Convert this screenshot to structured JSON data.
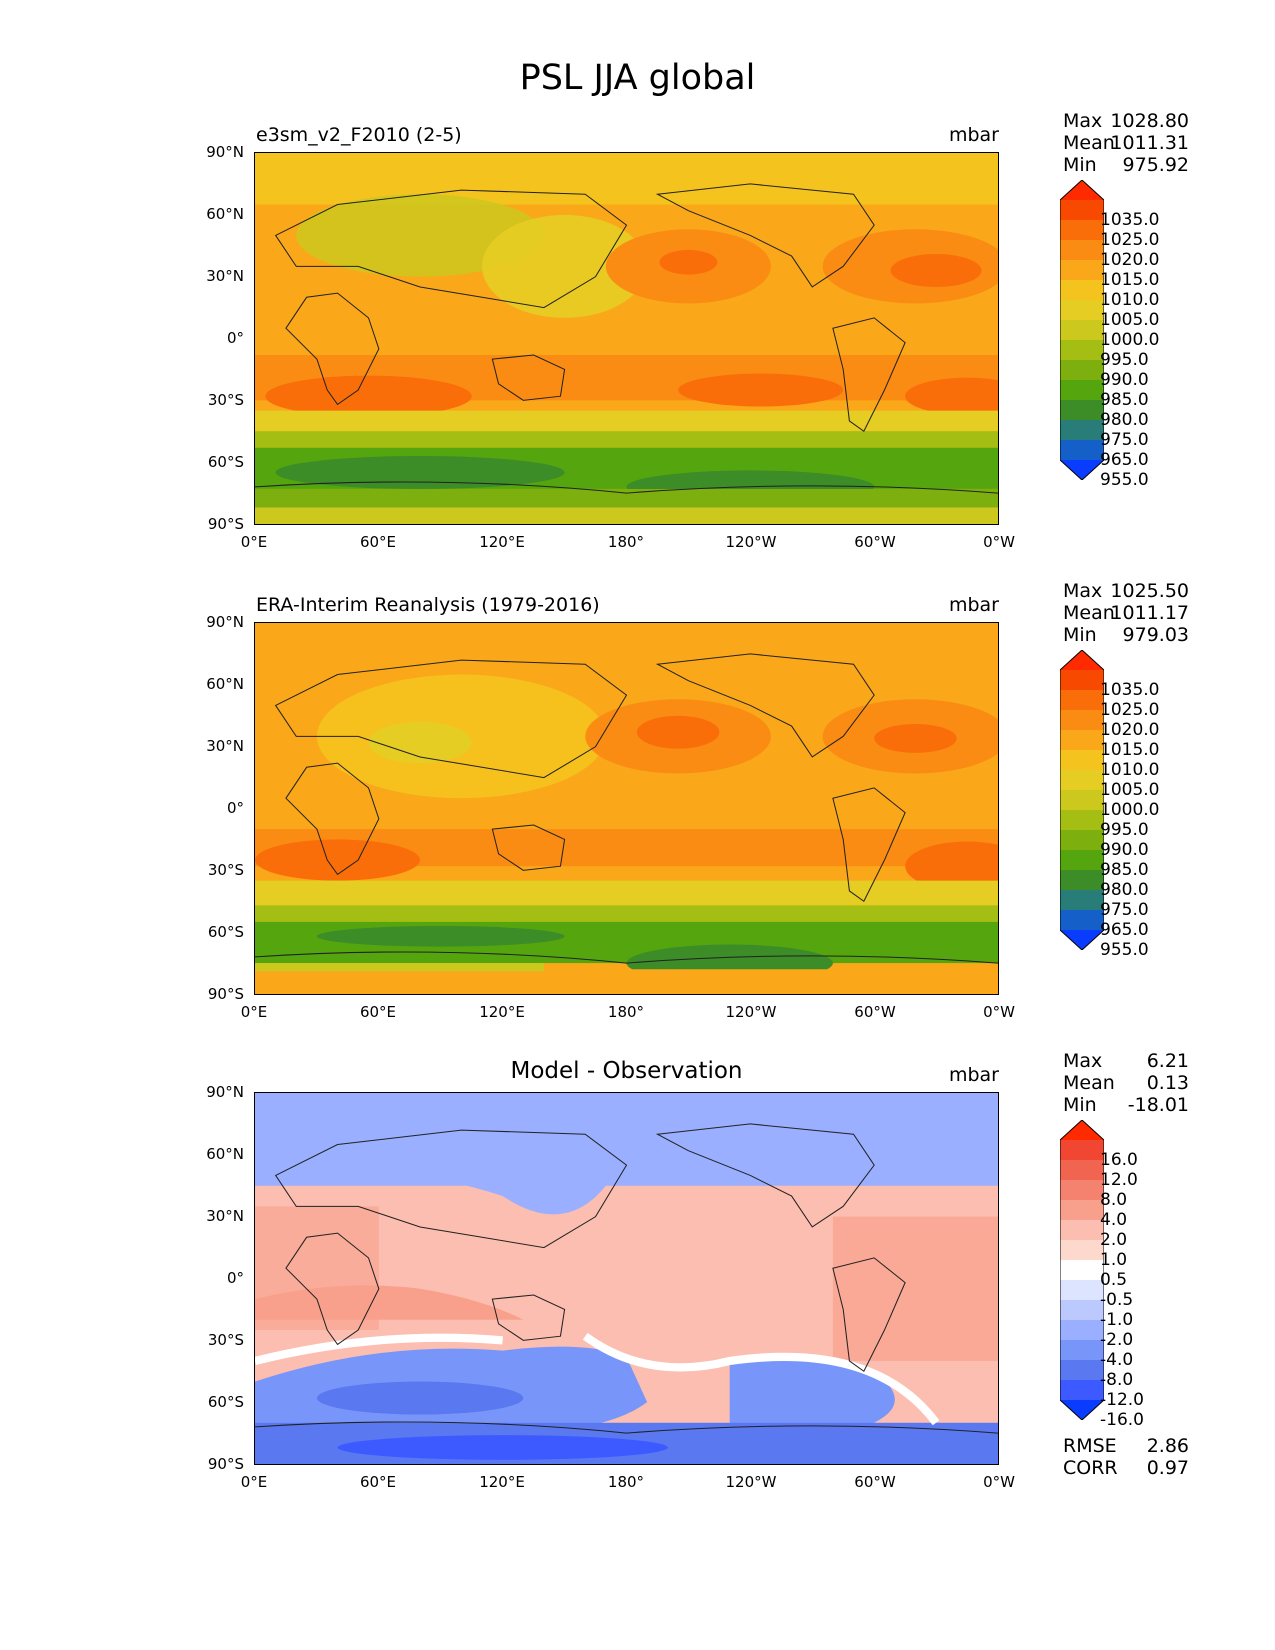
{
  "figure": {
    "title": "PSL JJA global"
  },
  "axes": {
    "lat_ticks": [
      "90°N",
      "60°N",
      "30°N",
      "0°",
      "30°S",
      "60°S",
      "90°S"
    ],
    "lon_ticks": [
      "0°E",
      "60°E",
      "120°E",
      "180°",
      "120°W",
      "60°W",
      "0°W"
    ]
  },
  "panels": [
    {
      "title": "e3sm_v2_F2010 (2-5)",
      "units": "mbar",
      "stats": {
        "max_label": "Max",
        "max": "1028.80",
        "mean_label": "Mean",
        "mean": "1011.31",
        "min_label": "Min",
        "min": "975.92"
      },
      "colorbar": {
        "levels": [
          "1035.0",
          "1025.0",
          "1020.0",
          "1015.0",
          "1010.0",
          "1005.0",
          "1000.0",
          "995.0",
          "990.0",
          "985.0",
          "980.0",
          "975.0",
          "965.0",
          "955.0"
        ],
        "colors": [
          "#ff2a00",
          "#f74a00",
          "#fa6e0a",
          "#fa8c14",
          "#faa819",
          "#f5c31e",
          "#e6cd23",
          "#cdc81e",
          "#a5be14",
          "#7daf0f",
          "#55a50f",
          "#3c8c28",
          "#287d78",
          "#1460c8",
          "#0a3cff"
        ]
      }
    },
    {
      "title": "ERA-Interim Reanalysis (1979-2016)",
      "units": "mbar",
      "stats": {
        "max_label": "Max",
        "max": "1025.50",
        "mean_label": "Mean",
        "mean": "1011.17",
        "min_label": "Min",
        "min": "979.03"
      },
      "colorbar": {
        "levels": [
          "1035.0",
          "1025.0",
          "1020.0",
          "1015.0",
          "1010.0",
          "1005.0",
          "1000.0",
          "995.0",
          "990.0",
          "985.0",
          "980.0",
          "975.0",
          "965.0",
          "955.0"
        ],
        "colors": [
          "#ff2a00",
          "#f74a00",
          "#fa6e0a",
          "#fa8c14",
          "#faa819",
          "#f5c31e",
          "#e6cd23",
          "#cdc81e",
          "#a5be14",
          "#7daf0f",
          "#55a50f",
          "#3c8c28",
          "#287d78",
          "#1460c8",
          "#0a3cff"
        ]
      }
    },
    {
      "title": "Model - Observation",
      "units": "mbar",
      "stats": {
        "max_label": "Max",
        "max": "6.21",
        "mean_label": "Mean",
        "mean": "0.13",
        "min_label": "Min",
        "min": "-18.01"
      },
      "colorbar": {
        "levels": [
          "16.0",
          "12.0",
          "8.0",
          "4.0",
          "2.0",
          "1.0",
          "0.5",
          "-0.5",
          "-1.0",
          "-2.0",
          "-4.0",
          "-8.0",
          "-12.0",
          "-16.0"
        ],
        "colors": [
          "#ff2a00",
          "#f04632",
          "#f06450",
          "#f5826e",
          "#f8a08c",
          "#fbbeb0",
          "#fdd8cc",
          "#ffffff",
          "#dde4ff",
          "#bcc9ff",
          "#9aafff",
          "#7896fa",
          "#5a78f0",
          "#3c5aff",
          "#0a3cff"
        ]
      },
      "metrics": {
        "rmse_label": "RMSE",
        "rmse": "2.86",
        "corr_label": "CORR",
        "corr": "0.97"
      }
    }
  ]
}
